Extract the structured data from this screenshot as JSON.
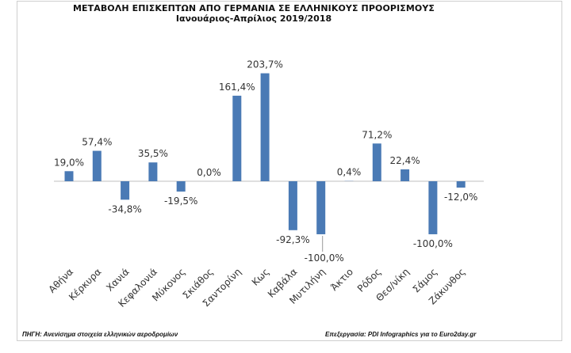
{
  "chart_data": {
    "type": "bar",
    "title": "ΜΕΤΑΒΟΛΗ  ΕΠΙΣΚΕΠΤΩΝ ΑΠΟ ΓΕΡΜΑΝΙΑ ΣΕ ΕΛΛΗΝΙΚΟΥΣ ΠΡΟΟΡΙΣΜΟΥΣ",
    "subtitle": "Ιανουάριος-Απρίλιος 2019/2018",
    "categories": [
      "Αθήνα",
      "Κέρκυρα",
      "Χανιά",
      "Κεφαλονιά",
      "Μύκονος",
      "Σκιάθος",
      "Σαντορίνη",
      "Κως",
      "Καβάλα",
      "Μυτιλήνη",
      "Άκτιο",
      "Ρόδος",
      "Θεσ/νίκη",
      "Σάμος",
      "Ζάκυνθος"
    ],
    "values": [
      19.0,
      57.4,
      -34.8,
      35.5,
      -19.5,
      0.0,
      161.4,
      203.7,
      -92.3,
      -100.0,
      0.4,
      71.2,
      22.4,
      -100.0,
      -12.0
    ],
    "data_labels": [
      "19,0%",
      "57,4%",
      "-34,8%",
      "35,5%",
      "-19,5%",
      "0,0%",
      "161,4%",
      "203,7%",
      "-92,3%",
      "-100,0%",
      "0,4%",
      "71,2%",
      "22,4%",
      "-100,0%",
      "-12,0%"
    ],
    "bar_color": "#4a7ab5",
    "ylim": [
      -100,
      210
    ],
    "grid": false,
    "legend": "none"
  },
  "footer": {
    "source": "ΠΗΓΗ: Ανενίσημα στοιχεία ελληνικών αεροδρομίων",
    "credit": "Επεξεργασία: PDI Infographics  για το Euro2day.gr"
  }
}
